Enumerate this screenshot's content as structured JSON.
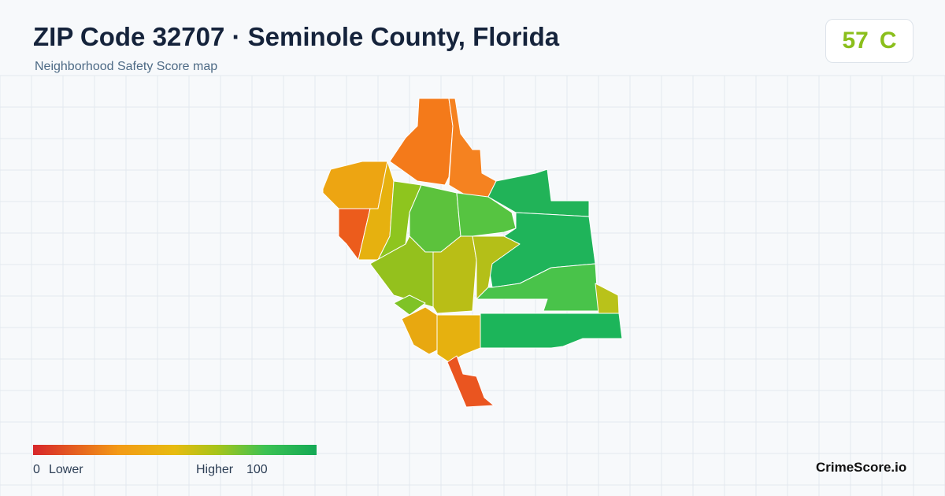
{
  "header": {
    "title": "ZIP Code 32707 · Seminole County, Florida",
    "subtitle": "Neighborhood Safety Score map",
    "score": 57,
    "grade": "C"
  },
  "legend": {
    "min": 0,
    "min_label": "Lower",
    "max_label": "Higher",
    "max": 100
  },
  "footer": {
    "brand": "CrimeScore.io"
  }
}
